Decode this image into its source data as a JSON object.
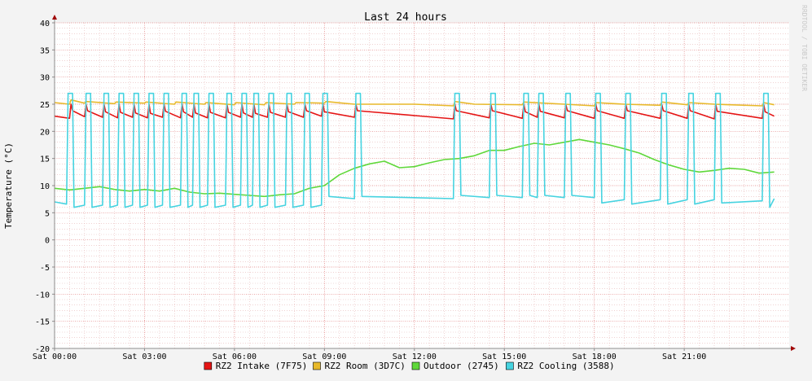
{
  "chart_data": {
    "type": "line",
    "title": "Last 24 hours",
    "ylabel": "Temperature (°C)",
    "watermark": "RRDTOOL / TOBI OETIKER",
    "ylim": [
      -20,
      40
    ],
    "y_ticks": [
      40,
      35,
      30,
      25,
      20,
      15,
      10,
      5,
      0,
      -5,
      -10,
      -15,
      -20
    ],
    "x_unit": "hours from Sat 00:00",
    "xlim": [
      0,
      24.5
    ],
    "x_ticks": [
      {
        "x": 0,
        "label": "Sat 00:00"
      },
      {
        "x": 3,
        "label": "Sat 03:00"
      },
      {
        "x": 6,
        "label": "Sat 06:00"
      },
      {
        "x": 9,
        "label": "Sat 09:00"
      },
      {
        "x": 12,
        "label": "Sat 12:00"
      },
      {
        "x": 15,
        "label": "Sat 15:00"
      },
      {
        "x": 18,
        "label": "Sat 18:00"
      },
      {
        "x": 21,
        "label": "Sat 21:00"
      }
    ],
    "grid": true,
    "legend_position": "bottom",
    "colors": {
      "background": "#f3f3f3",
      "canvas": "#ffffff",
      "minor_grid": "#e6b8b8",
      "major_grid": "#e07a7a",
      "axis": "#8c8c8c",
      "arrow": "#a00000",
      "text": "#000000",
      "watermark": "#c8c8c8"
    },
    "series": [
      {
        "name": "RZ2 Intake (7F75)",
        "color": "#e51515",
        "x": [
          0,
          0.5,
          0.55,
          0.6,
          1.0,
          1.05,
          1.1,
          1.6,
          1.65,
          1.7,
          2.1,
          2.15,
          2.2,
          2.6,
          2.65,
          2.7,
          3.1,
          3.15,
          3.2,
          3.6,
          3.65,
          3.7,
          4.2,
          4.25,
          4.3,
          4.6,
          4.65,
          4.7,
          5.1,
          5.15,
          5.2,
          5.7,
          5.75,
          5.8,
          6.2,
          6.25,
          6.3,
          6.6,
          6.65,
          6.7,
          7.1,
          7.15,
          7.2,
          7.7,
          7.75,
          7.8,
          8.3,
          8.35,
          8.4,
          8.9,
          8.95,
          9.0,
          10.0,
          10.05,
          10.1,
          13.3,
          13.35,
          13.4,
          14.5,
          14.55,
          14.6,
          15.6,
          15.65,
          15.7,
          16.1,
          16.15,
          16.2,
          17.0,
          17.05,
          17.1,
          18.0,
          18.05,
          18.1,
          19.0,
          19.05,
          19.1,
          20.2,
          20.25,
          20.3,
          21.1,
          21.15,
          21.2,
          22.0,
          22.05,
          22.1,
          23.6,
          23.65,
          23.7,
          24.0
        ],
        "y": [
          22.8,
          22.4,
          25.0,
          23.8,
          22.7,
          25.0,
          23.8,
          22.6,
          25.0,
          23.6,
          22.5,
          25.0,
          23.5,
          22.6,
          25.0,
          23.4,
          22.5,
          25.0,
          23.3,
          22.6,
          25.0,
          23.7,
          22.5,
          25.0,
          23.6,
          22.6,
          25.0,
          23.4,
          22.5,
          25.0,
          23.5,
          22.5,
          25.0,
          23.5,
          22.6,
          25.0,
          23.4,
          22.6,
          25.0,
          23.3,
          22.6,
          25.0,
          23.5,
          22.6,
          25.0,
          23.6,
          22.6,
          25.0,
          23.8,
          22.8,
          25.0,
          23.6,
          22.6,
          25.0,
          23.8,
          22.3,
          25.0,
          23.8,
          22.5,
          25.0,
          23.8,
          22.4,
          25.0,
          23.6,
          22.6,
          25.0,
          23.7,
          22.5,
          25.0,
          23.8,
          22.4,
          25.0,
          23.8,
          22.4,
          25.0,
          23.8,
          22.4,
          25.0,
          23.8,
          22.4,
          25.0,
          23.8,
          22.3,
          25.0,
          23.7,
          22.4,
          25.0,
          23.6,
          22.8
        ]
      },
      {
        "name": "RZ2 Room (3D7C)",
        "color": "#e8b92a",
        "x": [
          0,
          0.5,
          0.55,
          1.0,
          1.05,
          2.0,
          2.05,
          3.0,
          3.05,
          4.0,
          4.05,
          5.0,
          5.05,
          6.0,
          6.05,
          7.0,
          7.05,
          8.0,
          8.05,
          9.0,
          9.05,
          10.0,
          12.0,
          13.3,
          13.35,
          14.0,
          15.6,
          15.65,
          17.0,
          18.0,
          18.05,
          19.0,
          20.2,
          20.25,
          21.1,
          21.15,
          22.0,
          23.6,
          23.65,
          24.0
        ],
        "y": [
          25.3,
          25.0,
          25.8,
          25.2,
          25.5,
          25.1,
          25.4,
          25.2,
          25.4,
          25.0,
          25.4,
          25.0,
          25.3,
          24.9,
          25.3,
          24.9,
          25.3,
          25.0,
          25.3,
          25.2,
          25.5,
          25.0,
          25.0,
          24.7,
          25.5,
          25.0,
          24.9,
          25.4,
          25.0,
          24.7,
          25.3,
          25.0,
          24.8,
          25.4,
          24.9,
          25.3,
          25.0,
          24.7,
          25.3,
          24.9
        ]
      },
      {
        "name": "Outdoor (2745)",
        "color": "#5fd83a",
        "x": [
          0,
          0.5,
          1.0,
          1.5,
          2.0,
          2.5,
          3.0,
          3.5,
          4.0,
          4.5,
          5.0,
          5.5,
          6.0,
          6.5,
          7.0,
          7.5,
          8.0,
          8.5,
          9.0,
          9.5,
          10.0,
          10.5,
          11.0,
          11.5,
          12.0,
          12.5,
          13.0,
          13.5,
          14.0,
          14.5,
          15.0,
          15.5,
          16.0,
          16.5,
          17.0,
          17.5,
          18.0,
          18.5,
          19.0,
          19.5,
          20.0,
          20.5,
          21.0,
          21.5,
          22.0,
          22.5,
          23.0,
          23.5,
          24.0
        ],
        "y": [
          9.5,
          9.2,
          9.5,
          9.8,
          9.3,
          9.0,
          9.3,
          9.0,
          9.5,
          8.8,
          8.5,
          8.6,
          8.4,
          8.2,
          8.0,
          8.3,
          8.5,
          9.5,
          10.0,
          12.0,
          13.2,
          14.0,
          14.5,
          13.3,
          13.5,
          14.2,
          14.8,
          15.0,
          15.5,
          16.5,
          16.5,
          17.2,
          17.8,
          17.5,
          18.0,
          18.5,
          18.0,
          17.5,
          16.8,
          16.0,
          14.8,
          13.8,
          13.0,
          12.5,
          12.8,
          13.2,
          13.0,
          12.3,
          12.5
        ]
      },
      {
        "name": "RZ2 Cooling (3588)",
        "color": "#46d3e0",
        "x": [
          0,
          0.4,
          0.45,
          0.6,
          0.65,
          1.0,
          1.05,
          1.2,
          1.25,
          1.6,
          1.65,
          1.8,
          1.85,
          2.1,
          2.15,
          2.3,
          2.35,
          2.6,
          2.65,
          2.8,
          2.85,
          3.1,
          3.15,
          3.3,
          3.35,
          3.6,
          3.65,
          3.8,
          3.85,
          4.2,
          4.25,
          4.4,
          4.45,
          4.6,
          4.65,
          4.8,
          4.85,
          5.1,
          5.15,
          5.3,
          5.35,
          5.7,
          5.75,
          5.9,
          5.95,
          6.2,
          6.25,
          6.4,
          6.45,
          6.6,
          6.65,
          6.8,
          6.85,
          7.1,
          7.15,
          7.3,
          7.35,
          7.7,
          7.75,
          7.9,
          7.95,
          8.3,
          8.35,
          8.5,
          8.55,
          8.9,
          8.95,
          9.1,
          9.15,
          10.0,
          10.05,
          10.2,
          10.25,
          13.3,
          13.35,
          13.5,
          13.55,
          14.5,
          14.55,
          14.7,
          14.75,
          15.6,
          15.65,
          15.8,
          15.85,
          16.1,
          16.15,
          16.3,
          16.35,
          17.0,
          17.05,
          17.2,
          17.25,
          18.0,
          18.05,
          18.2,
          18.25,
          19.0,
          19.05,
          19.2,
          19.25,
          20.2,
          20.25,
          20.4,
          20.45,
          21.1,
          21.15,
          21.3,
          21.35,
          22.0,
          22.05,
          22.2,
          22.25,
          23.6,
          23.65,
          23.8,
          23.85,
          24.0
        ],
        "y": [
          7.0,
          6.6,
          27.0,
          27.0,
          6.0,
          6.4,
          27.0,
          27.0,
          6.0,
          6.4,
          27.0,
          27.0,
          6.0,
          6.4,
          27.0,
          27.0,
          6.0,
          6.4,
          27.0,
          27.0,
          6.0,
          6.4,
          27.0,
          27.0,
          6.0,
          6.4,
          27.0,
          27.0,
          6.0,
          6.4,
          27.0,
          27.0,
          6.0,
          6.4,
          27.0,
          27.0,
          6.0,
          6.4,
          27.0,
          27.0,
          6.0,
          6.4,
          27.0,
          27.0,
          6.0,
          6.4,
          27.0,
          27.0,
          6.0,
          6.4,
          27.0,
          27.0,
          6.0,
          6.4,
          27.0,
          27.0,
          6.0,
          6.4,
          27.0,
          27.0,
          6.0,
          6.4,
          27.0,
          27.0,
          6.0,
          6.4,
          27.0,
          27.0,
          8.0,
          7.6,
          27.0,
          27.0,
          8.0,
          7.6,
          27.0,
          27.0,
          8.2,
          7.8,
          27.0,
          27.0,
          8.2,
          7.8,
          27.0,
          27.0,
          8.2,
          7.8,
          27.0,
          27.0,
          8.2,
          7.8,
          27.0,
          27.0,
          8.2,
          7.8,
          27.0,
          27.0,
          6.8,
          7.4,
          27.0,
          27.0,
          6.6,
          7.4,
          27.0,
          27.0,
          6.6,
          7.4,
          27.0,
          27.0,
          6.6,
          7.4,
          27.0,
          27.0,
          6.8,
          7.2,
          27.0,
          27.0,
          6.0,
          7.6
        ]
      }
    ]
  }
}
